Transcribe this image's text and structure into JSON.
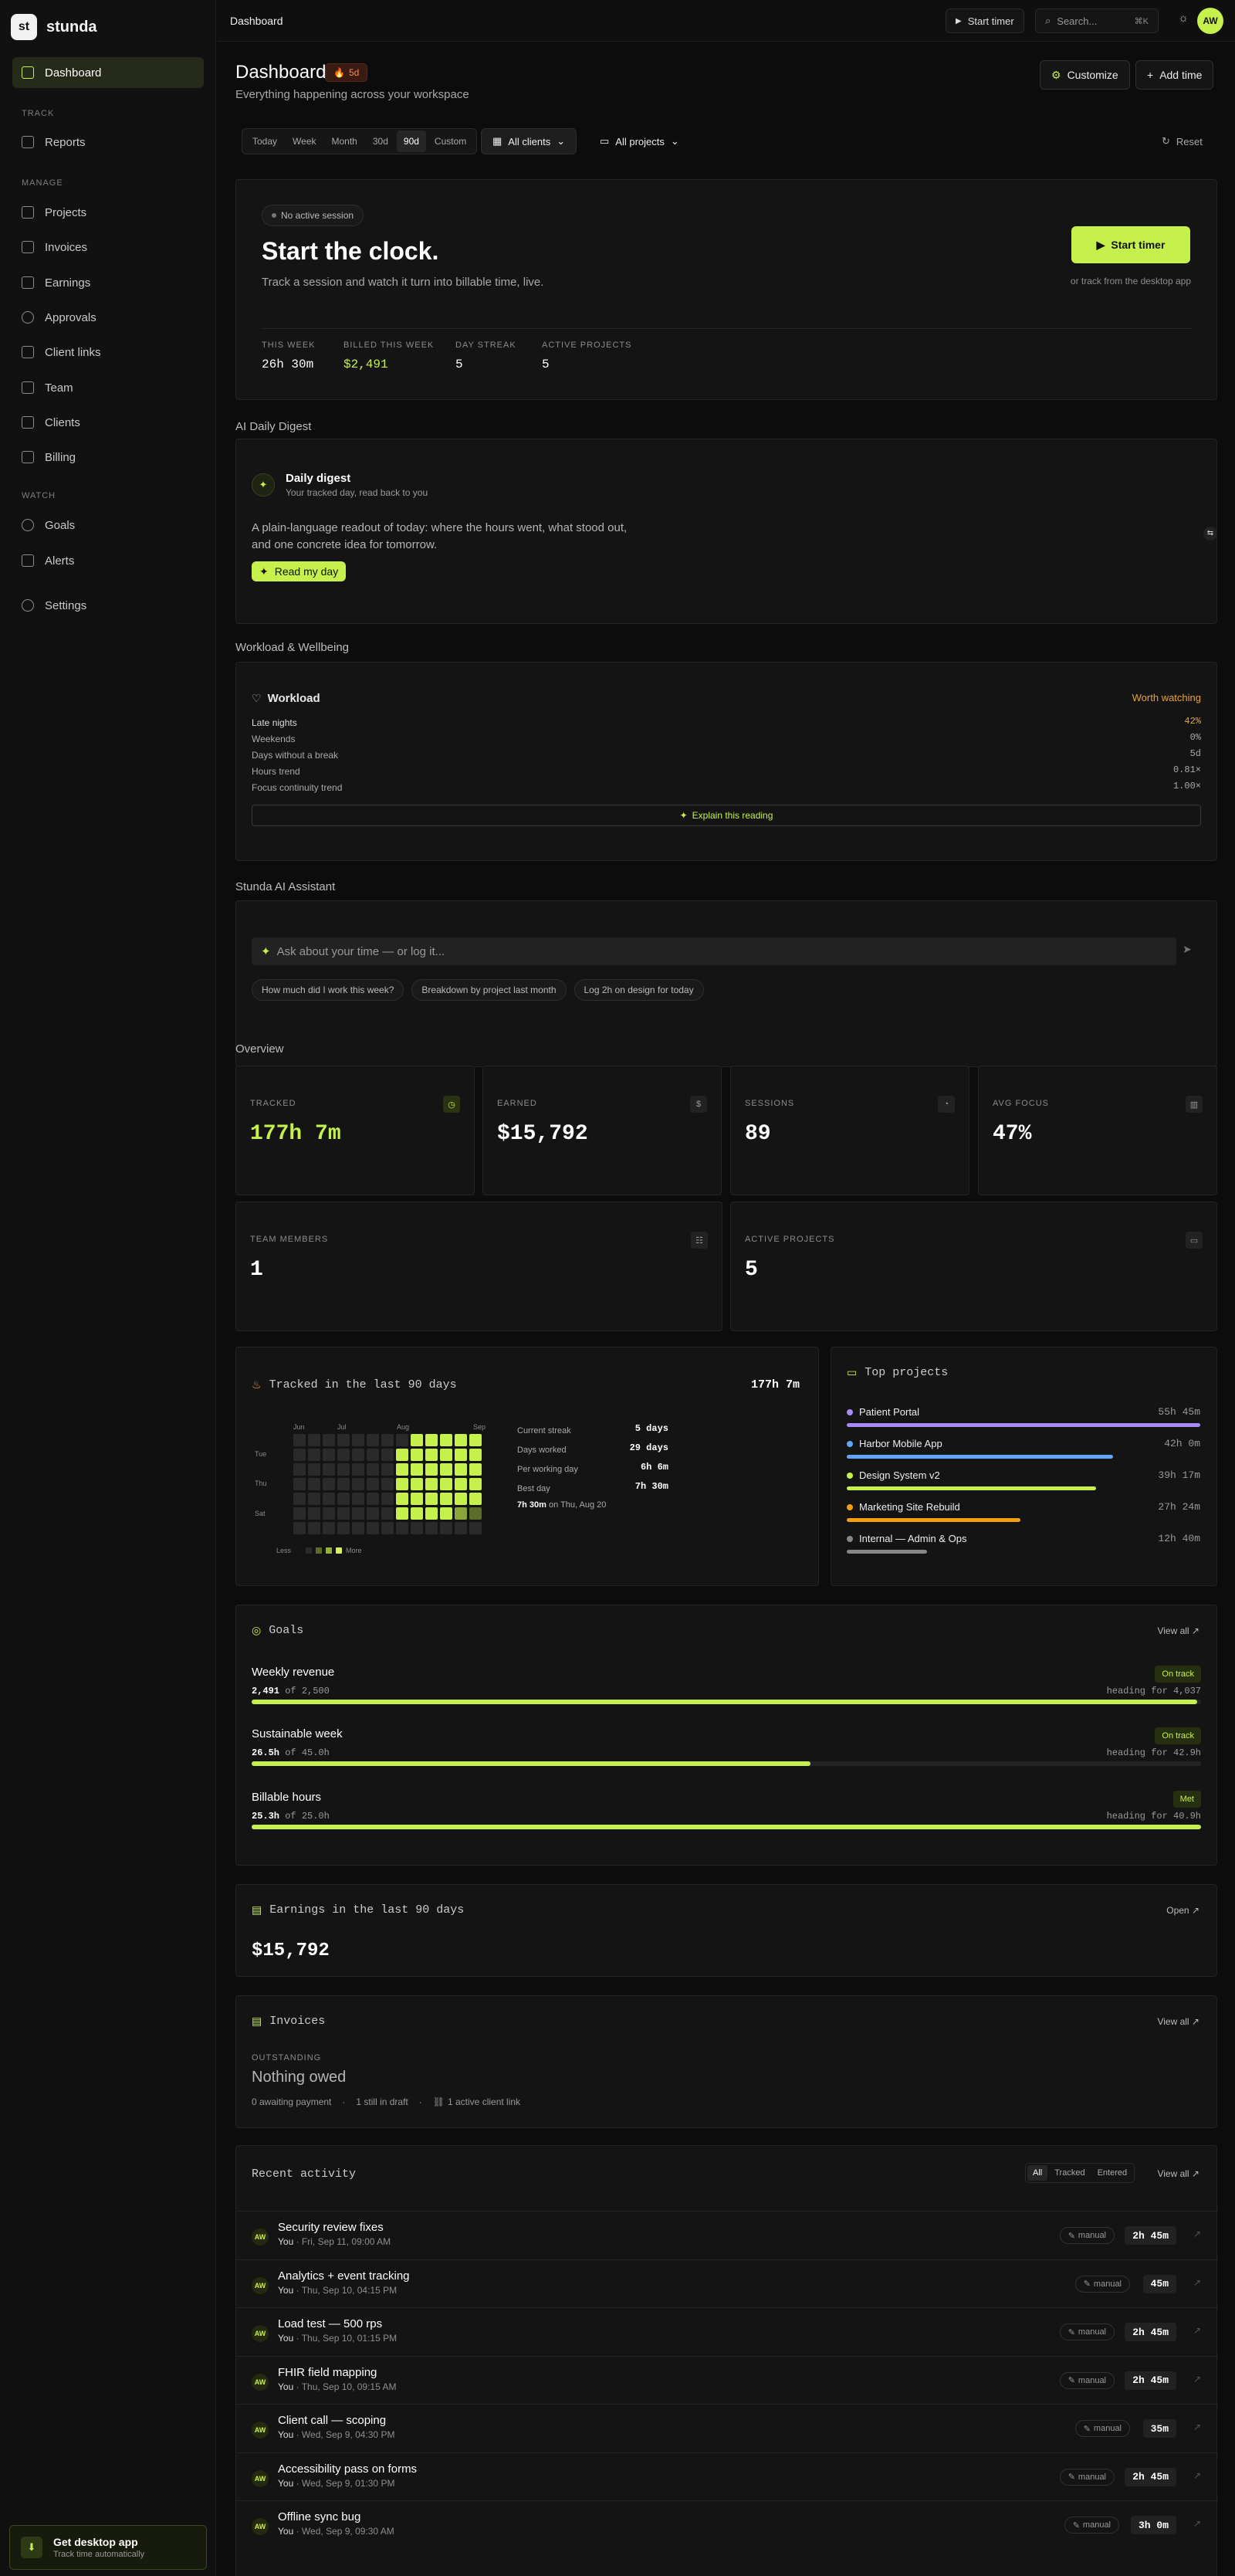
{
  "app": {
    "logo_mark": "st",
    "name": "stunda",
    "user_initials": "AW"
  },
  "sidebar": {
    "groups": {
      "track": "TRACK",
      "manage": "MANAGE",
      "watch": "WATCH"
    },
    "items": [
      "Dashboard",
      "Reports",
      "Projects",
      "Invoices",
      "Earnings",
      "Approvals",
      "Client links",
      "Team",
      "Clients",
      "Billing",
      "Goals",
      "Alerts",
      "Settings"
    ],
    "desktop": {
      "title": "Get desktop app",
      "subtitle": "Track time automatically"
    }
  },
  "topbar": {
    "breadcrumb": "Dashboard",
    "start_timer": "Start timer",
    "search_placeholder": "Search...",
    "shortcut": "⌘K"
  },
  "header": {
    "title": "Dashboard",
    "streak": "5d",
    "subtitle": "Everything happening across your workspace",
    "customize": "Customize",
    "add_time": "Add time"
  },
  "filters": {
    "ranges": [
      "Today",
      "Week",
      "Month",
      "30d",
      "90d",
      "Custom"
    ],
    "selected": "90d",
    "clients": "All clients",
    "projects": "All projects",
    "reset": "Reset"
  },
  "hero": {
    "badge": "No active session",
    "title": "Start the clock.",
    "text": "Track a session and watch it turn into billable time, live.",
    "start": "Start timer",
    "desktop_hint": "or track from the desktop app",
    "stats": [
      {
        "label": "THIS WEEK",
        "value": "26h 30m"
      },
      {
        "label": "BILLED THIS WEEK",
        "value": "$2,491"
      },
      {
        "label": "DAY STREAK",
        "value": "5"
      },
      {
        "label": "ACTIVE PROJECTS",
        "value": "5"
      }
    ]
  },
  "digest": {
    "section": "AI Daily Digest",
    "title": "Daily digest",
    "subtitle": "Your tracked day, read back to you",
    "text": "A plain-language readout of today: where the hours went, what stood out, and one concrete idea for tomorrow.",
    "button": "Read my day"
  },
  "workload": {
    "section": "Workload & Wellbeing",
    "title": "Workload",
    "status": "Worth watching",
    "rows": [
      {
        "label": "Late nights",
        "value": "42%"
      },
      {
        "label": "Weekends",
        "value": "0%"
      },
      {
        "label": "Days without a break",
        "value": "5d"
      },
      {
        "label": "Hours trend",
        "value": "0.81×"
      },
      {
        "label": "Focus continuity trend",
        "value": "1.00×"
      }
    ],
    "explain": "Explain this reading"
  },
  "assistant": {
    "section": "Stunda AI Assistant",
    "placeholder": "Ask about your time — or log it...",
    "suggestions": [
      "How much did I work this week?",
      "Breakdown by project last month",
      "Log 2h on design for today"
    ]
  },
  "overview": {
    "section": "Overview",
    "cards": [
      {
        "label": "TRACKED",
        "value": "177h 7m"
      },
      {
        "label": "EARNED",
        "value": "$15,792"
      },
      {
        "label": "SESSIONS",
        "value": "89"
      },
      {
        "label": "AVG FOCUS",
        "value": "47%"
      },
      {
        "label": "TEAM MEMBERS",
        "value": "1"
      },
      {
        "label": "ACTIVE PROJECTS",
        "value": "5"
      }
    ]
  },
  "heatmap": {
    "title": "Tracked in the last 90 days",
    "total": "177h 7m",
    "months": [
      "Jun",
      "Jul",
      "Aug",
      "Sep"
    ],
    "days": [
      "Tue",
      "Thu",
      "Sat"
    ],
    "less": "Less",
    "more": "More",
    "stats": [
      {
        "label": "Current streak",
        "value": "5 days"
      },
      {
        "label": "Days worked",
        "value": "29 days"
      },
      {
        "label": "Per working day",
        "value": "6h 6m"
      },
      {
        "label": "Best day",
        "value": "7h 30m"
      }
    ],
    "best_day_value": "7h 30m",
    "best_day_date": "on Thu, Aug 20"
  },
  "top_projects": {
    "title": "Top projects",
    "items": [
      {
        "name": "Patient Portal",
        "value": "55h 45m",
        "color": "#a78bfa",
        "ratio": 1.0
      },
      {
        "name": "Harbor Mobile App",
        "value": "42h 0m",
        "color": "#60a5fa",
        "ratio": 0.754
      },
      {
        "name": "Design System v2",
        "value": "39h 17m",
        "color": "#c6f04c",
        "ratio": 0.705
      },
      {
        "name": "Marketing Site Rebuild",
        "value": "27h 24m",
        "color": "#f59e0b",
        "ratio": 0.492
      },
      {
        "name": "Internal — Admin & Ops",
        "value": "12h 40m",
        "color": "#888888",
        "ratio": 0.227
      }
    ]
  },
  "goals": {
    "title": "Goals",
    "view_all": "View all ↗",
    "items": [
      {
        "name": "Weekly revenue",
        "badge": "On track",
        "current": "2,491",
        "target": "of 2,500",
        "heading": "heading for 4,037",
        "ratio": 0.996
      },
      {
        "name": "Sustainable week",
        "badge": "On track",
        "current": "26.5h",
        "target": "of 45.0h",
        "heading": "heading for 42.9h",
        "ratio": 0.589
      },
      {
        "name": "Billable hours",
        "badge": "Met",
        "current": "25.3h",
        "target": "of 25.0h",
        "heading": "heading for 40.9h",
        "ratio": 1.0
      }
    ]
  },
  "earnings": {
    "title": "Earnings in the last 90 days",
    "open": "Open ↗",
    "value": "$15,792"
  },
  "invoices": {
    "title": "Invoices",
    "view_all": "View all ↗",
    "label": "OUTSTANDING",
    "value": "Nothing owed",
    "meta": [
      "0 awaiting payment",
      "1 still in draft",
      "1 active client link"
    ]
  },
  "activity": {
    "title": "Recent activity",
    "tabs": [
      "All",
      "Tracked",
      "Entered"
    ],
    "view_all": "View all ↗",
    "items": [
      {
        "title": "Security review fixes",
        "who": "You",
        "when": "Fri, Sep 11, 09:00 AM",
        "tag": "manual",
        "duration": "2h 45m"
      },
      {
        "title": "Analytics + event tracking",
        "who": "You",
        "when": "Thu, Sep 10, 04:15 PM",
        "tag": "manual",
        "duration": "45m"
      },
      {
        "title": "Load test — 500 rps",
        "who": "You",
        "when": "Thu, Sep 10, 01:15 PM",
        "tag": "manual",
        "duration": "2h 45m"
      },
      {
        "title": "FHIR field mapping",
        "who": "You",
        "when": "Thu, Sep 10, 09:15 AM",
        "tag": "manual",
        "duration": "2h 45m"
      },
      {
        "title": "Client call — scoping",
        "who": "You",
        "when": "Wed, Sep 9, 04:30 PM",
        "tag": "manual",
        "duration": "35m"
      },
      {
        "title": "Accessibility pass on forms",
        "who": "You",
        "when": "Wed, Sep 9, 01:30 PM",
        "tag": "manual",
        "duration": "2h 45m"
      },
      {
        "title": "Offline sync bug",
        "who": "You",
        "when": "Wed, Sep 9, 09:30 AM",
        "tag": "manual",
        "duration": "3h 0m"
      }
    ]
  }
}
